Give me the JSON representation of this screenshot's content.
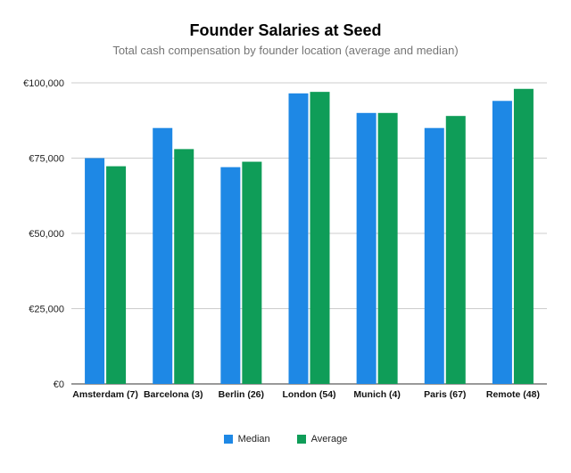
{
  "chart_data": {
    "type": "bar",
    "title": "Founder Salaries at Seed",
    "subtitle": "Total cash compensation by founder location (average and median)",
    "categories": [
      "Amsterdam (7)",
      "Barcelona (3)",
      "Berlin (26)",
      "London (54)",
      "Munich (4)",
      "Paris (67)",
      "Remote (48)"
    ],
    "series": [
      {
        "name": "Median",
        "color": "#1e88e5",
        "values": [
          75000,
          85000,
          72000,
          96500,
          90000,
          85000,
          94000
        ]
      },
      {
        "name": "Average",
        "color": "#0f9d58",
        "values": [
          72300,
          78000,
          73800,
          97000,
          90000,
          89000,
          98000
        ]
      }
    ],
    "ylim": [
      0,
      100000
    ],
    "yticks": [
      0,
      25000,
      50000,
      75000,
      100000
    ],
    "ytick_labels": [
      "€0",
      "€25,000",
      "€50,000",
      "€75,000",
      "€100,000"
    ],
    "grid": true,
    "legend_position": "bottom"
  }
}
